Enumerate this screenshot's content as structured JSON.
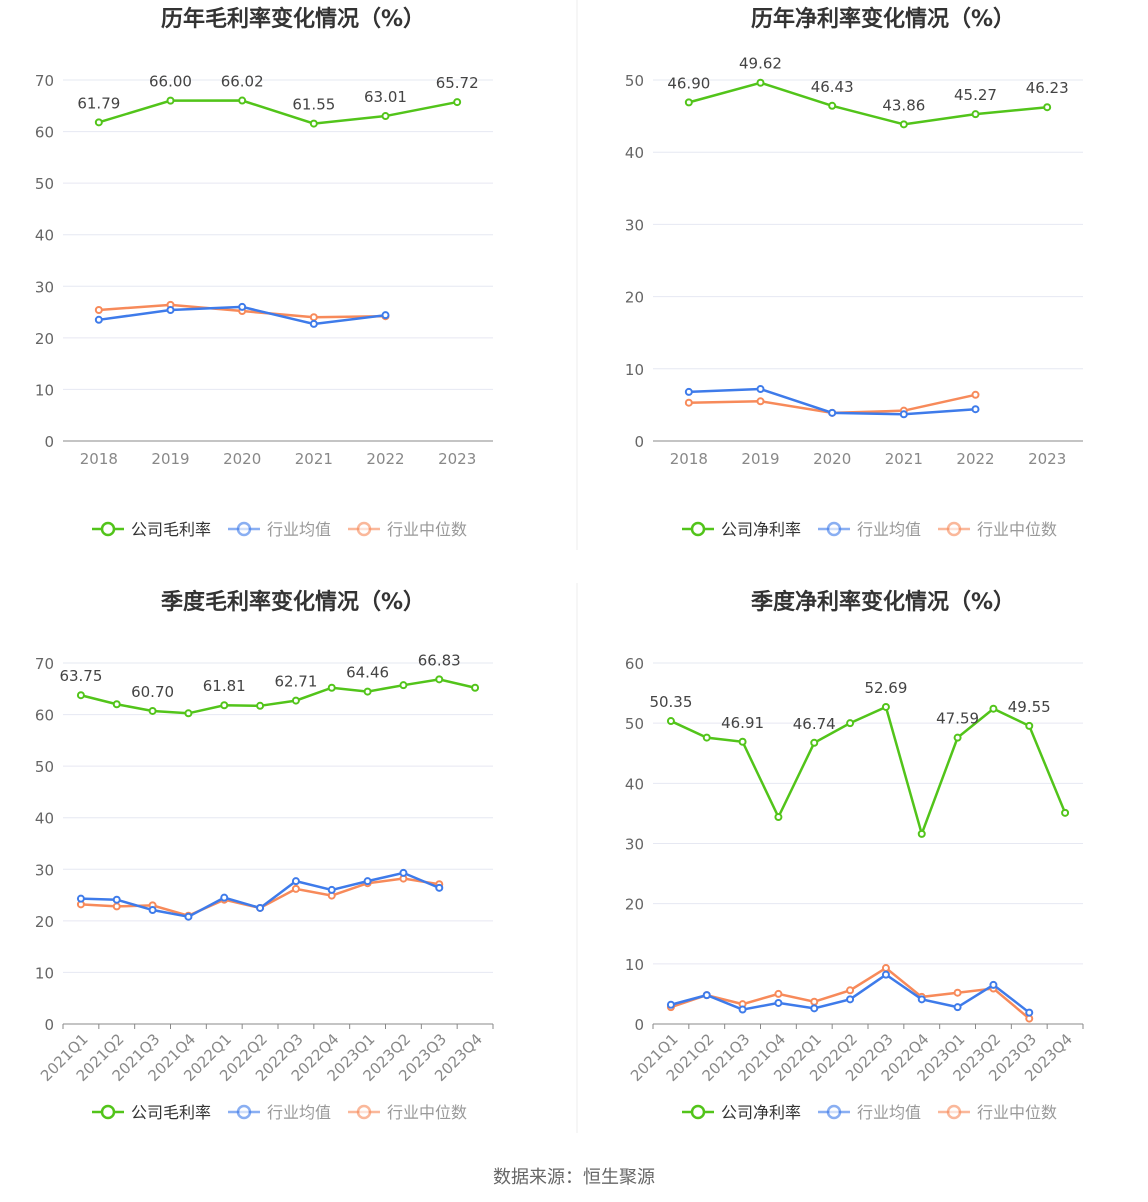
{
  "colors": {
    "company": "#52c41a",
    "industry_avg": "#3e7bea",
    "industry_median": "#f78a5a"
  },
  "legend_common": {
    "avg": "行业均值",
    "median": "行业中位数"
  },
  "source": "数据来源：恒生聚源",
  "chart_data": [
    {
      "type": "line",
      "title": "历年毛利率变化情况（%）",
      "categories": [
        "2018",
        "2019",
        "2020",
        "2021",
        "2022",
        "2023"
      ],
      "ylim": [
        0,
        70
      ],
      "yticks": [
        0,
        10,
        20,
        30,
        40,
        50,
        60,
        70
      ],
      "grid": true,
      "legend": "bottom",
      "series": [
        {
          "name": "公司毛利率",
          "key": "company",
          "values": [
            61.79,
            66.0,
            66.02,
            61.55,
            63.01,
            65.72
          ],
          "data_labels": [
            "61.79",
            "66.00",
            "66.02",
            "61.55",
            "63.01",
            "65.72"
          ]
        },
        {
          "name": "行业均值",
          "key": "industry_avg",
          "values": [
            23.5,
            25.4,
            26.0,
            22.7,
            24.4,
            null
          ]
        },
        {
          "name": "行业中位数",
          "key": "industry_median",
          "values": [
            25.4,
            26.4,
            25.2,
            24.0,
            24.2,
            null
          ]
        }
      ]
    },
    {
      "type": "line",
      "title": "历年净利率变化情况（%）",
      "categories": [
        "2018",
        "2019",
        "2020",
        "2021",
        "2022",
        "2023"
      ],
      "ylim": [
        0,
        50
      ],
      "yticks": [
        0,
        10,
        20,
        30,
        40,
        50
      ],
      "grid": true,
      "legend": "bottom",
      "series": [
        {
          "name": "公司净利率",
          "key": "company",
          "values": [
            46.9,
            49.62,
            46.43,
            43.86,
            45.27,
            46.23
          ],
          "data_labels": [
            "46.90",
            "49.62",
            "46.43",
            "43.86",
            "45.27",
            "46.23"
          ]
        },
        {
          "name": "行业均值",
          "key": "industry_avg",
          "values": [
            6.8,
            7.2,
            3.9,
            3.7,
            4.4,
            null
          ]
        },
        {
          "name": "行业中位数",
          "key": "industry_median",
          "values": [
            5.3,
            5.5,
            3.9,
            4.2,
            6.4,
            null
          ]
        }
      ]
    },
    {
      "type": "line",
      "title": "季度毛利率变化情况（%）",
      "categories": [
        "2021Q1",
        "2021Q2",
        "2021Q3",
        "2021Q4",
        "2022Q1",
        "2022Q2",
        "2022Q3",
        "2022Q4",
        "2023Q1",
        "2023Q2",
        "2023Q3",
        "2023Q4"
      ],
      "ylim": [
        0,
        70
      ],
      "yticks": [
        0,
        10,
        20,
        30,
        40,
        50,
        60,
        70
      ],
      "grid": true,
      "legend": "bottom",
      "series": [
        {
          "name": "公司毛利率",
          "key": "company",
          "values": [
            63.75,
            62.0,
            60.7,
            60.25,
            61.81,
            61.7,
            62.71,
            65.2,
            64.46,
            65.7,
            66.83,
            65.2
          ],
          "data_labels": [
            "63.75",
            "",
            "60.70",
            "",
            "61.81",
            "",
            "62.71",
            "",
            "64.46",
            "",
            "66.83",
            ""
          ]
        },
        {
          "name": "行业均值",
          "key": "industry_avg",
          "values": [
            24.3,
            24.1,
            22.1,
            20.8,
            24.5,
            22.5,
            27.7,
            26.0,
            27.7,
            29.3,
            26.4,
            null
          ]
        },
        {
          "name": "行业中位数",
          "key": "industry_median",
          "values": [
            23.2,
            22.8,
            23.0,
            21.0,
            24.1,
            22.5,
            26.2,
            24.9,
            27.3,
            28.2,
            27.1,
            null
          ]
        }
      ]
    },
    {
      "type": "line",
      "title": "季度净利率变化情况（%）",
      "categories": [
        "2021Q1",
        "2021Q2",
        "2021Q3",
        "2021Q4",
        "2022Q1",
        "2022Q2",
        "2022Q3",
        "2022Q4",
        "2023Q1",
        "2023Q2",
        "2023Q3",
        "2023Q4"
      ],
      "ylim": [
        0,
        60
      ],
      "yticks": [
        0,
        10,
        20,
        30,
        40,
        50,
        60
      ],
      "grid": true,
      "legend": "bottom",
      "series": [
        {
          "name": "公司净利率",
          "key": "company",
          "values": [
            50.35,
            47.6,
            46.91,
            34.4,
            46.74,
            50.0,
            52.69,
            31.6,
            47.59,
            52.4,
            49.55,
            35.1
          ],
          "data_labels": [
            "50.35",
            "",
            "46.91",
            "",
            "46.74",
            "",
            "52.69",
            "",
            "47.59",
            "",
            "49.55",
            ""
          ]
        },
        {
          "name": "行业均值",
          "key": "industry_avg",
          "values": [
            3.2,
            4.8,
            2.4,
            3.5,
            2.6,
            4.1,
            8.2,
            4.1,
            2.8,
            6.5,
            1.9,
            null
          ]
        },
        {
          "name": "行业中位数",
          "key": "industry_median",
          "values": [
            2.8,
            4.8,
            3.3,
            5.0,
            3.7,
            5.6,
            9.3,
            4.5,
            5.2,
            5.9,
            0.9,
            null
          ]
        }
      ]
    }
  ]
}
